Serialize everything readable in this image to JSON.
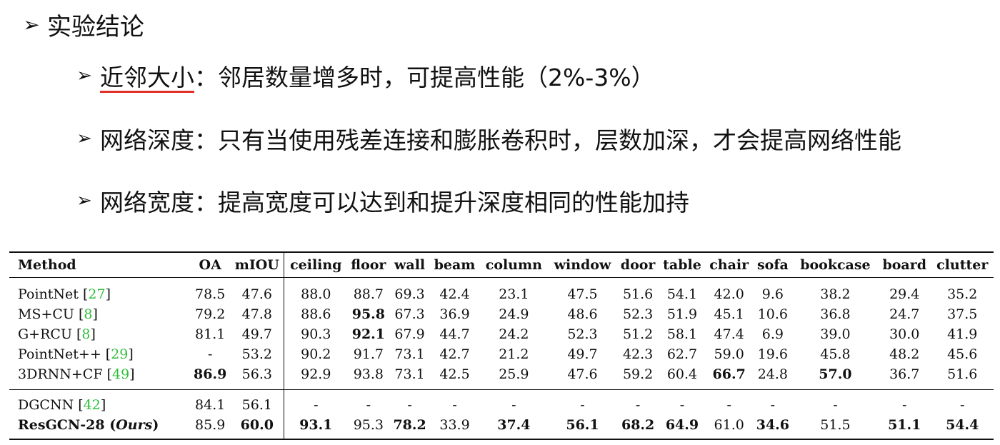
{
  "heading": {
    "arrow": "➢",
    "text": "实验结论"
  },
  "points": [
    {
      "arrow": "➢",
      "label": "近邻大小",
      "text": "：邻居数量增多时，可提高性能（2%-3%）"
    },
    {
      "arrow": "➢",
      "label": "网络深度",
      "text": "：只有当使用残差连接和膨胀卷积时，层数加深，才会提高网络性能"
    },
    {
      "arrow": "➢",
      "label": "网络宽度",
      "text": "：提高宽度可以达到和提升深度相同的性能加持"
    }
  ],
  "table": {
    "headers": [
      "Method",
      "OA",
      "mIOU",
      "ceiling",
      "floor",
      "wall",
      "beam",
      "column",
      "window",
      "door",
      "table",
      "chair",
      "sofa",
      "bookcase",
      "board",
      "clutter"
    ],
    "rows": [
      {
        "name": "PointNet ",
        "ref": "27",
        "values": [
          "78.5",
          "47.6",
          "88.0",
          "88.7",
          "69.3",
          "42.4",
          "23.1",
          "47.5",
          "51.6",
          "54.1",
          "42.0",
          "9.6",
          "38.2",
          "29.4",
          "35.2"
        ]
      },
      {
        "name": "MS+CU ",
        "ref": "8",
        "values": [
          "79.2",
          "47.8",
          "88.6",
          "95.8",
          "67.3",
          "36.9",
          "24.9",
          "48.6",
          "52.3",
          "51.9",
          "45.1",
          "10.6",
          "36.8",
          "24.7",
          "37.5"
        ]
      },
      {
        "name": "G+RCU ",
        "ref": "8",
        "values": [
          "81.1",
          "49.7",
          "90.3",
          "92.1",
          "67.9",
          "44.7",
          "24.2",
          "52.3",
          "51.2",
          "58.1",
          "47.4",
          "6.9",
          "39.0",
          "30.0",
          "41.9"
        ]
      },
      {
        "name": "PointNet++ ",
        "ref": "29",
        "values": [
          "-",
          "53.2",
          "90.2",
          "91.7",
          "73.1",
          "42.7",
          "21.2",
          "49.7",
          "42.3",
          "62.7",
          "59.0",
          "19.6",
          "45.8",
          "48.2",
          "45.6"
        ]
      },
      {
        "name": "3DRNN+CF ",
        "ref": "49",
        "values": [
          "86.9",
          "56.3",
          "92.9",
          "93.8",
          "73.1",
          "42.5",
          "25.9",
          "47.6",
          "59.2",
          "60.4",
          "66.7",
          "24.8",
          "57.0",
          "36.7",
          "51.6"
        ]
      },
      {
        "name": "DGCNN ",
        "ref": "42",
        "values": [
          "84.1",
          "56.1",
          "-",
          "-",
          "-",
          "-",
          "-",
          "-",
          "-",
          "-",
          "-",
          "-",
          "-",
          "-",
          "-"
        ]
      },
      {
        "name": "ResGCN-28 (",
        "name_italic": "Ours",
        "name_end": ")",
        "values": [
          "85.9",
          "60.0",
          "93.1",
          "95.3",
          "78.2",
          "33.9",
          "37.4",
          "56.1",
          "68.2",
          "64.9",
          "61.0",
          "34.6",
          "51.5",
          "51.1",
          "54.4"
        ]
      }
    ],
    "bold_cells": [
      [
        1,
        3
      ],
      [
        2,
        3
      ],
      [
        4,
        0
      ],
      [
        4,
        10
      ],
      [
        4,
        12
      ],
      [
        6,
        1
      ],
      [
        6,
        2
      ],
      [
        6,
        4
      ],
      [
        6,
        6
      ],
      [
        6,
        7
      ],
      [
        6,
        8
      ],
      [
        6,
        9
      ],
      [
        6,
        11
      ],
      [
        6,
        13
      ],
      [
        6,
        14
      ]
    ],
    "colors": {
      "ref": "#2fbf3a",
      "underline": "#e0302a"
    }
  }
}
